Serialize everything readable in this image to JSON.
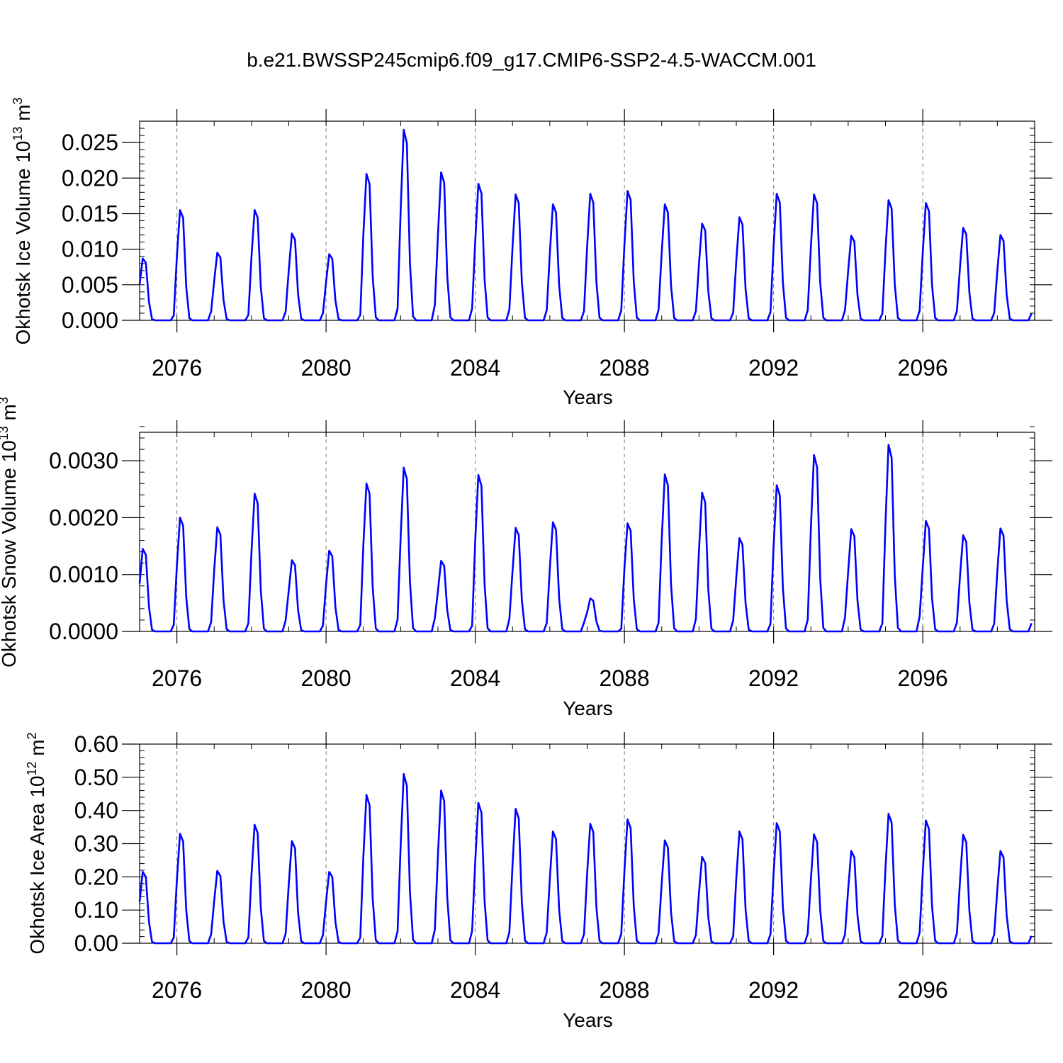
{
  "title": "b.e21.BWSSP245cmip6.f09_g17.CMIP6-SSP2-4.5-WACCM.001",
  "colors": {
    "series": "#0000ff",
    "grid": "#777777",
    "axis": "#000000"
  },
  "chart_data": [
    {
      "type": "line",
      "name": "ice-volume",
      "ylabel": {
        "main": "Okhotsk Ice Volume 10",
        "sup": "13",
        "unit": " m",
        "unitsup": "3"
      },
      "xlabel": "Years",
      "xlim": [
        2075.0,
        2099.0
      ],
      "ylim": [
        0,
        0.028
      ],
      "x_ticks": [
        2076,
        2080,
        2084,
        2088,
        2092,
        2096
      ],
      "x_tick_labels": [
        "2076",
        "2080",
        "2084",
        "2088",
        "2092",
        "2096"
      ],
      "y_ticks": [
        0,
        0.005,
        0.01,
        0.015,
        0.02,
        0.025
      ],
      "y_tick_labels": [
        "0.000",
        "0.005",
        "0.010",
        "0.015",
        "0.020",
        "0.025"
      ],
      "y_minor_step": 0.001,
      "x_start": 2075.0,
      "x_step": 0.08333,
      "peaks": [
        0.0087,
        0.0155,
        0.0095,
        0.0155,
        0.0122,
        0.0093,
        0.0206,
        0.0268,
        0.0208,
        0.0192,
        0.0177,
        0.0163,
        0.0178,
        0.0182,
        0.0163,
        0.0136,
        0.0145,
        0.0178,
        0.0177,
        0.0119,
        0.0169,
        0.0165,
        0.013,
        0.012
      ],
      "series": [
        {
          "name": "Okhotsk Ice Volume",
          "values": []
        }
      ]
    },
    {
      "type": "line",
      "name": "snow-volume",
      "ylabel": {
        "main": "Okhotsk Snow Volume 10",
        "sup": "13",
        "unit": " m",
        "unitsup": "3"
      },
      "xlabel": "Years",
      "xlim": [
        2075.0,
        2099.0
      ],
      "ylim": [
        0,
        0.0035
      ],
      "x_ticks": [
        2076,
        2080,
        2084,
        2088,
        2092,
        2096
      ],
      "x_tick_labels": [
        "2076",
        "2080",
        "2084",
        "2088",
        "2092",
        "2096"
      ],
      "y_ticks": [
        0,
        0.001,
        0.002,
        0.003
      ],
      "y_tick_labels": [
        "0.0000",
        "0.0010",
        "0.0020",
        "0.0030"
      ],
      "y_minor_step": 0.0002,
      "x_start": 2075.0,
      "x_step": 0.08333,
      "peaks": [
        0.00145,
        0.002,
        0.00183,
        0.00242,
        0.00125,
        0.00142,
        0.0026,
        0.00288,
        0.00124,
        0.00275,
        0.00182,
        0.00192,
        0.00058,
        0.0019,
        0.00276,
        0.00244,
        0.00164,
        0.00257,
        0.0031,
        0.0018,
        0.00328,
        0.00194,
        0.00169,
        0.00181
      ],
      "series": [
        {
          "name": "Okhotsk Snow Volume",
          "values": []
        }
      ]
    },
    {
      "type": "line",
      "name": "ice-area",
      "ylabel": {
        "main": "Okhotsk Ice Area 10",
        "sup": "12",
        "unit": " m",
        "unitsup": "2"
      },
      "xlabel": "Years",
      "xlim": [
        2075.0,
        2099.0
      ],
      "ylim": [
        0,
        0.6
      ],
      "x_ticks": [
        2076,
        2080,
        2084,
        2088,
        2092,
        2096
      ],
      "x_tick_labels": [
        "2076",
        "2080",
        "2084",
        "2088",
        "2092",
        "2096"
      ],
      "y_ticks": [
        0,
        0.1,
        0.2,
        0.3,
        0.4,
        0.5,
        0.6
      ],
      "y_tick_labels": [
        "0.00",
        "0.10",
        "0.20",
        "0.30",
        "0.40",
        "0.50",
        "0.60"
      ],
      "y_minor_step": 0.02,
      "x_start": 2075.0,
      "x_step": 0.08333,
      "peaks": [
        0.215,
        0.33,
        0.218,
        0.357,
        0.308,
        0.215,
        0.447,
        0.51,
        0.46,
        0.423,
        0.405,
        0.337,
        0.36,
        0.373,
        0.31,
        0.26,
        0.337,
        0.362,
        0.328,
        0.278,
        0.39,
        0.37,
        0.327,
        0.278
      ],
      "series": [
        {
          "name": "Okhotsk Ice Area",
          "values": []
        }
      ]
    }
  ]
}
